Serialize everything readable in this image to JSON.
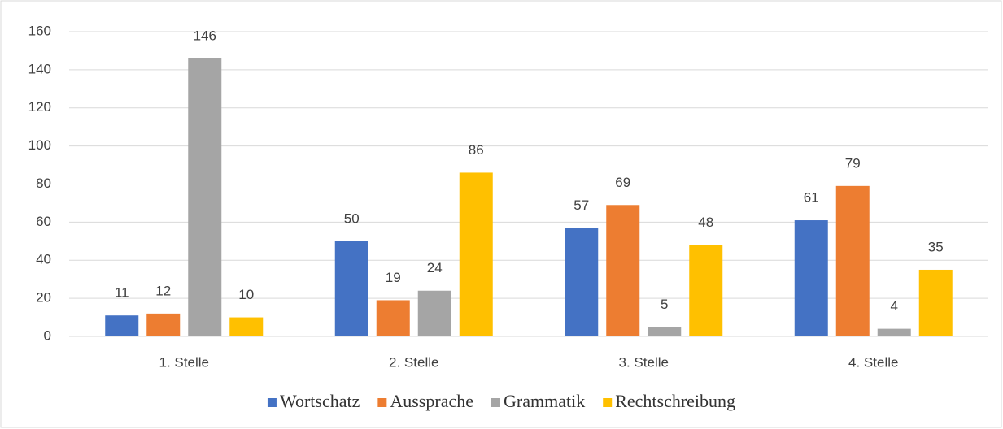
{
  "chart_data": {
    "type": "bar",
    "categories": [
      "1. Stelle",
      "2. Stelle",
      "3. Stelle",
      "4. Stelle"
    ],
    "series": [
      {
        "name": "Wortschatz",
        "color": "#4472c4",
        "values": [
          11,
          50,
          57,
          61
        ]
      },
      {
        "name": "Aussprache",
        "color": "#ed7d31",
        "values": [
          12,
          19,
          69,
          79
        ]
      },
      {
        "name": "Grammatik",
        "color": "#a5a5a5",
        "values": [
          146,
          24,
          5,
          4
        ]
      },
      {
        "name": "Rechtschreibung",
        "color": "#ffc000",
        "values": [
          10,
          86,
          48,
          35
        ]
      }
    ],
    "ylim": [
      0,
      160
    ],
    "yticks": [
      0,
      20,
      40,
      60,
      80,
      100,
      120,
      140,
      160
    ],
    "grid": true,
    "legend": "bottom",
    "data_labels": true
  }
}
